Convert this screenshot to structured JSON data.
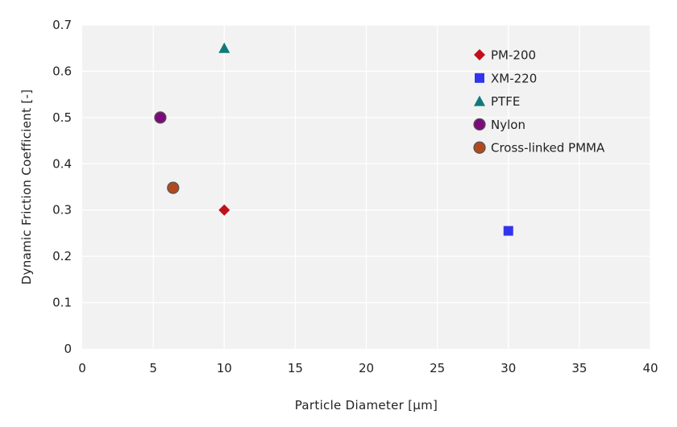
{
  "chart_data": {
    "type": "scatter",
    "title": "",
    "xlabel": "Particle Diameter [µm]",
    "ylabel": "Dynamic Friction Coefficient [-]",
    "xlim": [
      0,
      40
    ],
    "ylim": [
      0,
      0.7
    ],
    "xticks": [
      0,
      5,
      10,
      15,
      20,
      25,
      30,
      35,
      40
    ],
    "xtick_labels": [
      "0",
      "5",
      "10",
      "15",
      "20",
      "25",
      "30",
      "35",
      "40"
    ],
    "yticks": [
      0,
      0.1,
      0.2,
      0.3,
      0.4,
      0.5,
      0.6,
      0.7
    ],
    "ytick_labels": [
      "0",
      "0.1",
      "0.2",
      "0.3",
      "0.4",
      "0.5",
      "0.6",
      "0.7"
    ],
    "grid": true,
    "legend_position": "top-right",
    "series": [
      {
        "name": "PM-200",
        "marker": "diamond",
        "color": "#c0101c",
        "points": [
          {
            "x": 10,
            "y": 0.3
          }
        ]
      },
      {
        "name": "XM-220",
        "marker": "square",
        "color": "#3333ee",
        "points": [
          {
            "x": 30,
            "y": 0.255
          }
        ]
      },
      {
        "name": "PTFE",
        "marker": "triangle",
        "color": "#107a7a",
        "points": [
          {
            "x": 10,
            "y": 0.65
          }
        ]
      },
      {
        "name": "Nylon",
        "marker": "circle",
        "color": "#7d0a7d",
        "points": [
          {
            "x": 5.5,
            "y": 0.5
          }
        ]
      },
      {
        "name": "Cross-linked PMMA",
        "marker": "circle",
        "color": "#b04a1e",
        "points": [
          {
            "x": 6.4,
            "y": 0.348
          }
        ]
      }
    ],
    "colors": {
      "plot_background": "#f2f2f2",
      "gridline": "#ffffff",
      "text": "#222222"
    }
  }
}
